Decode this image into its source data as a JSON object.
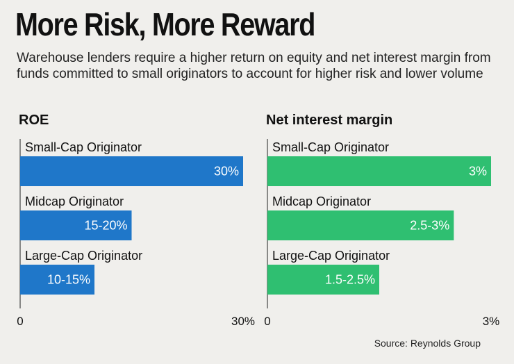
{
  "header": {
    "title": "More Risk, More Reward",
    "subtitle": "Warehouse lenders require a higher return on equity and net interest margin from funds committed to small originators to account for higher risk and lower volume"
  },
  "footer": {
    "source": "Source: Reynolds Group"
  },
  "colors": {
    "roe": "#1f77c9",
    "nim": "#2fbf71"
  },
  "chart_data": [
    {
      "type": "bar",
      "orientation": "horizontal",
      "title": "ROE",
      "categories": [
        "Small-Cap Originator",
        "Midcap Originator",
        "Large-Cap Originator"
      ],
      "values": [
        30,
        15,
        10
      ],
      "value_labels": [
        "30%",
        "15-20%",
        "10-15%"
      ],
      "xlim": [
        0,
        30
      ],
      "tick_labels": [
        "0",
        "30%"
      ],
      "unit": "%"
    },
    {
      "type": "bar",
      "orientation": "horizontal",
      "title": "Net interest margin",
      "categories": [
        "Small-Cap Originator",
        "Midcap Originator",
        "Large-Cap Originator"
      ],
      "values": [
        3,
        2.5,
        1.5
      ],
      "value_labels": [
        "3%",
        "2.5-3%",
        "1.5-2.5%"
      ],
      "xlim": [
        0,
        3
      ],
      "tick_labels": [
        "0",
        "3%"
      ],
      "unit": "%"
    }
  ]
}
